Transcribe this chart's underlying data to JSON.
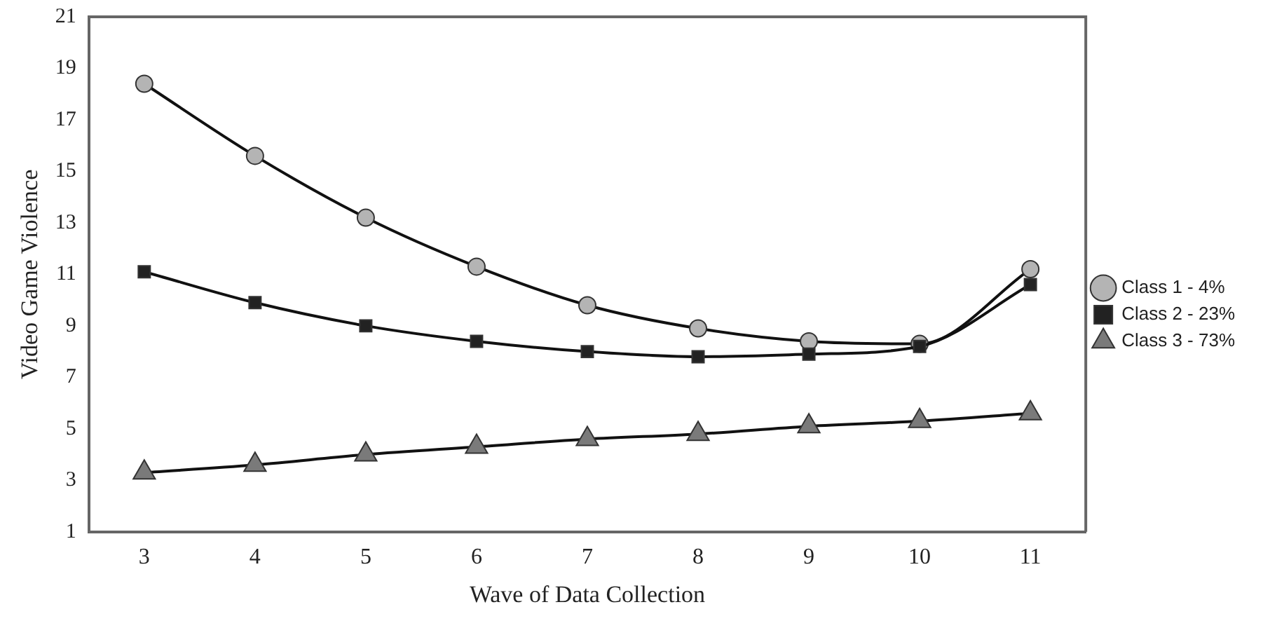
{
  "chart_data": {
    "type": "line",
    "xlabel": "Wave of Data Collection",
    "ylabel": "Video Game Violence",
    "categories": [
      "3",
      "4",
      "5",
      "6",
      "7",
      "8",
      "9",
      "10",
      "11"
    ],
    "ylim": [
      1,
      21
    ],
    "yticks": [
      1,
      3,
      5,
      7,
      9,
      11,
      13,
      15,
      17,
      19,
      21
    ],
    "grid": false,
    "legend": "right",
    "series": [
      {
        "name": "Class 1 - 4%",
        "color": "#b4b4b4",
        "marker": "circle",
        "values": [
          18.4,
          15.6,
          13.2,
          11.3,
          9.8,
          8.9,
          8.4,
          8.3,
          11.2
        ]
      },
      {
        "name": "Class 2 - 23%",
        "color": "#222222",
        "marker": "square",
        "values": [
          11.1,
          9.9,
          9.0,
          8.4,
          8.0,
          7.8,
          7.9,
          8.2,
          10.6
        ]
      },
      {
        "name": "Class 3 - 73%",
        "color": "#7a7a7a",
        "marker": "triangle",
        "values": [
          3.3,
          3.6,
          4.0,
          4.3,
          4.6,
          4.8,
          5.1,
          5.3,
          5.6
        ]
      }
    ]
  }
}
